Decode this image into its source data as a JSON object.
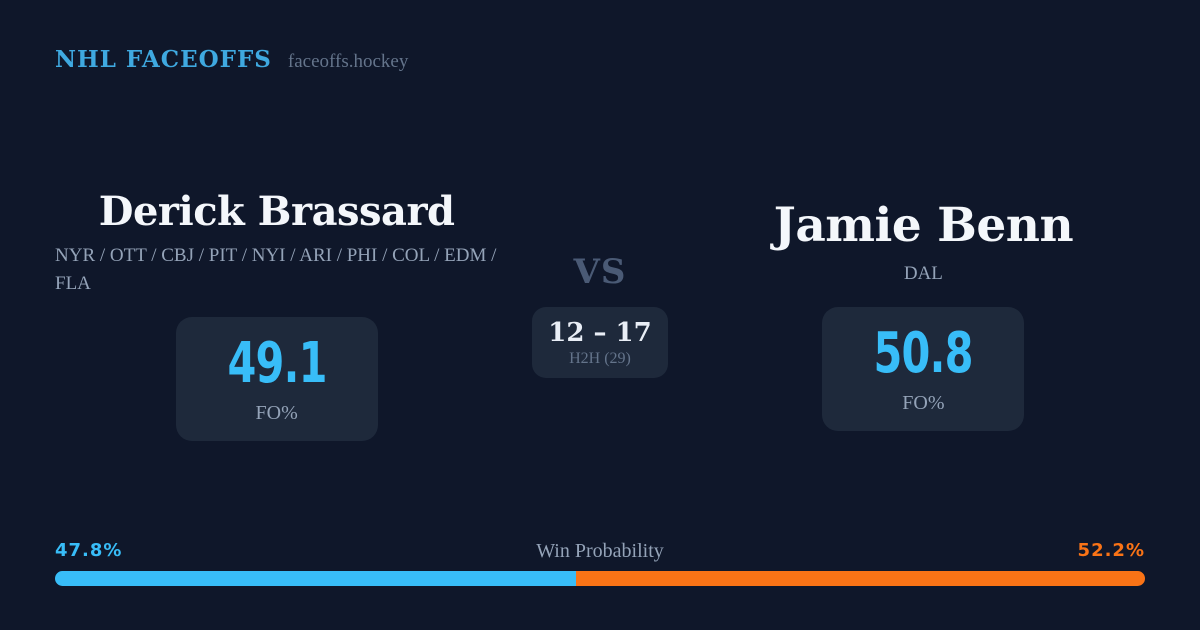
{
  "brand": {
    "title": "NHL FACEOFFS",
    "domain": "faceoffs.hockey"
  },
  "matchup": {
    "vs_label": "VS",
    "h2h": {
      "score": "12 – 17",
      "label": "H2H (29)"
    },
    "players": [
      {
        "name": "Derick Brassard",
        "teams": "NYR / OTT / CBJ / PIT / NYI / ARI / PHI / COL / EDM / FLA",
        "fo_pct": "49.1",
        "fo_label": "FO%"
      },
      {
        "name": "Jamie Benn",
        "teams": "DAL",
        "fo_pct": "50.8",
        "fo_label": "FO%"
      }
    ]
  },
  "win_probability": {
    "title": "Win Probability",
    "left_label": "47.8%",
    "right_label": "52.2%",
    "left_value": 47.8,
    "right_value": 52.2
  },
  "colors": {
    "bg": "#0f172a",
    "card": "#1e293b",
    "accent": "#38bdf8",
    "brand": "#3fa9e0",
    "orange": "#f97316",
    "muted": "#94a3b8",
    "dim": "#64748b"
  }
}
